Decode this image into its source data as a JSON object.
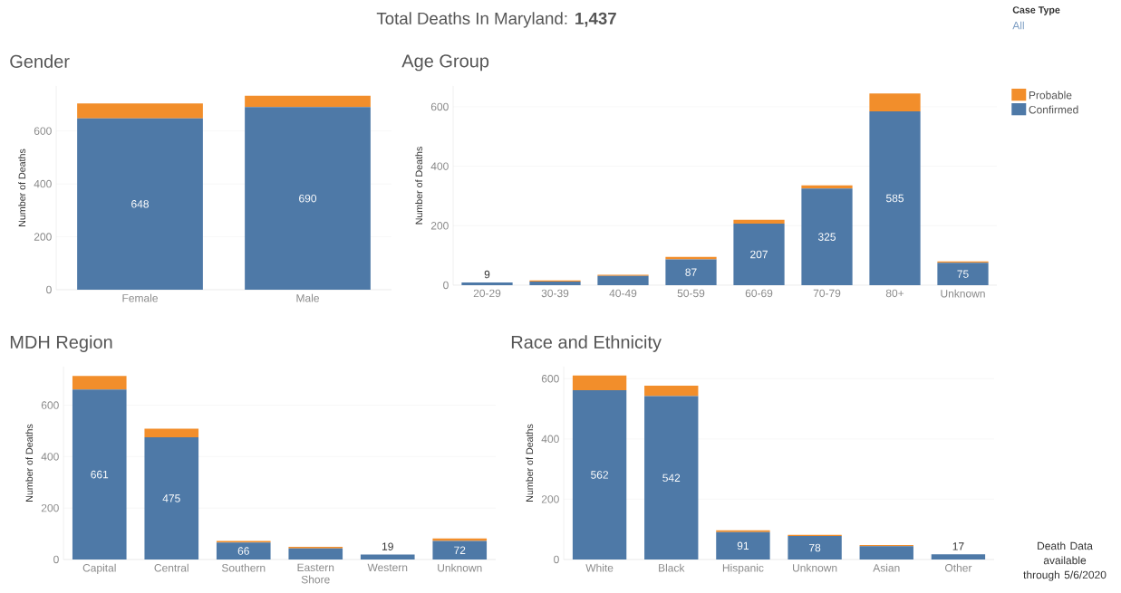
{
  "chart_data": [
    {
      "type": "bar",
      "title": "Gender",
      "ylabel": "Number of Deaths",
      "categories": [
        "Female",
        "Male"
      ],
      "stacked": true,
      "grid": "y",
      "ylim": [
        0,
        770
      ],
      "yticks": [
        0,
        200,
        400,
        600
      ],
      "annotations": [
        "Total Deaths In Maryland: **1,437**",
        "Case Type",
        "All"
      ],
      "series": [
        {
          "color": "#4e79a7",
          "values": [
            648,
            690
          ],
          "value_labels": [
            "648",
            "690"
          ]
        },
        {
          "color": "#f28e2b",
          "values": [
            56,
            43
          ]
        }
      ]
    },
    {
      "type": "bar",
      "title": "Age Group",
      "ylabel": "Number of Deaths",
      "categories": [
        "20-29",
        "30-39",
        "40-49",
        "50-59",
        "60-69",
        "70-79",
        "80+",
        "Unknown"
      ],
      "stacked": true,
      "grid": "y",
      "legend": "right",
      "ylim": [
        0,
        670
      ],
      "yticks": [
        0,
        200,
        400,
        600
      ],
      "series": [
        {
          "name": "Confirmed",
          "color": "#4e79a7",
          "values": [
            9,
            12,
            31,
            87,
            207,
            325,
            585,
            75
          ],
          "value_labels": [
            "9",
            null,
            null,
            "87",
            "207",
            "325",
            "585",
            "75"
          ]
        },
        {
          "name": "Probable",
          "color": "#f28e2b",
          "values": [
            null,
            4,
            4,
            8,
            13,
            11,
            60,
            5
          ]
        }
      ]
    },
    {
      "type": "bar",
      "title": "MDH Region",
      "ylabel": "Number of Deaths",
      "categories": [
        "Capital",
        "Central",
        "Southern",
        "Eastern Shore",
        "Western",
        "Unknown"
      ],
      "stacked": true,
      "grid": "y",
      "ylim": [
        0,
        750
      ],
      "yticks": [
        0,
        200,
        400,
        600
      ],
      "series": [
        {
          "color": "#4e79a7",
          "values": [
            661,
            475,
            66,
            43,
            19,
            72
          ],
          "value_labels": [
            "661",
            "475",
            "66",
            null,
            "19",
            "72"
          ]
        },
        {
          "color": "#f28e2b",
          "values": [
            53,
            34,
            6,
            6,
            null,
            10
          ]
        }
      ]
    },
    {
      "type": "bar",
      "title": "Race and Ethnicity",
      "ylabel": "Number of Deaths",
      "categories": [
        "White",
        "Black",
        "Hispanic",
        "Unknown",
        "Asian",
        "Other"
      ],
      "stacked": true,
      "grid": "y",
      "ylim": [
        0,
        640
      ],
      "yticks": [
        0,
        200,
        400,
        600
      ],
      "annotations": [
        "Death Data available through 5/6/2020"
      ],
      "series": [
        {
          "color": "#4e79a7",
          "values": [
            562,
            542,
            91,
            78,
            44,
            17
          ],
          "value_labels": [
            "562",
            "542",
            "91",
            "78",
            null,
            "17"
          ]
        },
        {
          "color": "#f28e2b",
          "values": [
            49,
            35,
            6,
            4,
            4,
            null
          ]
        }
      ]
    }
  ]
}
